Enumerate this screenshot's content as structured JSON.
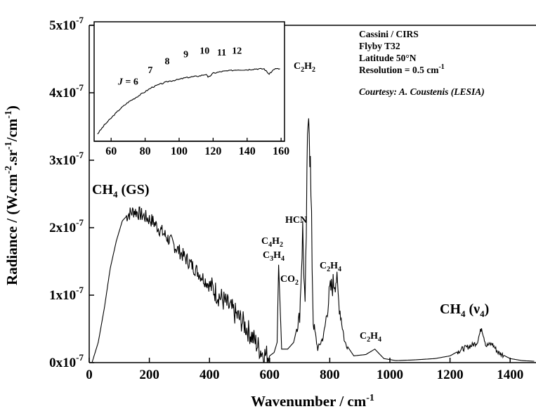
{
  "chart_data": [
    {
      "type": "line",
      "xlabel": "Wavenumber / cm",
      "xlabel_sup": "-1",
      "ylabel": "Radiance / (W.cm",
      "ylabel_parts": [
        "Radiance / (W.cm",
        "-2",
        ".sr",
        "-1",
        "/cm",
        "-1",
        ")"
      ],
      "xlim": [
        0,
        1480
      ],
      "ylim": [
        0,
        5e-07
      ],
      "xticks": [
        0,
        200,
        400,
        600,
        800,
        1000,
        1200,
        1400
      ],
      "xtick_labels": [
        "0",
        "200",
        "400",
        "600",
        "800",
        "1000",
        "1200",
        "1400"
      ],
      "ytick_labels": [
        "0x10",
        "1x10",
        "2x10",
        "3x10",
        "4x10",
        "5x10"
      ],
      "ytick_exp": "-7",
      "yticks": [
        0,
        1e-07,
        2e-07,
        3e-07,
        4e-07,
        5e-07
      ],
      "grid": false,
      "series": [
        {
          "x": [
            10,
            30,
            50,
            70,
            90,
            110,
            130,
            150,
            170,
            190,
            210,
            230,
            250,
            270,
            300,
            330,
            360,
            390,
            420,
            450,
            480,
            510,
            540,
            560,
            580,
            600,
            615,
            625,
            630,
            640,
            660,
            680,
            700,
            710,
            718,
            730,
            745,
            760,
            780,
            800,
            815,
            822,
            830,
            850,
            880,
            920,
            950,
            980,
            1020,
            1080,
            1150,
            1200,
            1240,
            1270,
            1290,
            1305,
            1320,
            1340,
            1360,
            1400,
            1440,
            1480
          ],
          "y": [
            1e-09,
            3e-08,
            8e-08,
            1.4e-07,
            1.8e-07,
            2.1e-07,
            2.2e-07,
            2.25e-07,
            2.2e-07,
            2.15e-07,
            2.1e-07,
            2e-07,
            1.9e-07,
            1.8e-07,
            1.65e-07,
            1.5e-07,
            1.35e-07,
            1.2e-07,
            1.05e-07,
            9e-08,
            7.5e-08,
            6e-08,
            4e-08,
            2.5e-08,
            1.2e-08,
            1e-08,
            1.5e-08,
            3e-08,
            1.45e-07,
            2e-08,
            2e-08,
            3e-08,
            7e-08,
            1.95e-07,
            8e-08,
            4.2e-07,
            6e-08,
            2e-08,
            4e-08,
            1.05e-07,
            1.2e-07,
            1.25e-07,
            9e-08,
            3e-08,
            1e-08,
            1.2e-08,
            2e-08,
            6e-09,
            3e-09,
            4e-09,
            6e-09,
            1e-08,
            2e-08,
            2.5e-08,
            3e-08,
            5.2e-08,
            2.5e-08,
            2.8e-08,
            1.5e-08,
            6e-09,
            3e-09,
            2e-09
          ]
        }
      ],
      "annotations": {
        "info_lines": [
          "Cassini / CIRS",
          "Flyby T32",
          "Latitude 50°N"
        ],
        "resolution": "Resolution = 0.5 cm",
        "resolution_sup": "-1",
        "courtesy": "Courtesy: A. Coustenis (LESIA)",
        "ch4_gs": "CH4 (GS)",
        "ch4_v4": "CH4 (ν4)",
        "c2h2": "C2H2",
        "hcn": "HCN",
        "c4h2": "C4H2",
        "c3h4": "C3H4",
        "co2": "CO2",
        "c2h4_main": "C2H4",
        "c2h4_small": "C2H4"
      }
    },
    {
      "type": "line",
      "xlim": [
        50,
        162
      ],
      "xticks": [
        60,
        80,
        100,
        120,
        140,
        160
      ],
      "xtick_labels": [
        "60",
        "80",
        "100",
        "120",
        "140",
        "160"
      ],
      "series": [
        {
          "x": [
            52,
            56,
            60,
            65,
            70,
            75,
            80,
            84,
            88,
            94,
            100,
            104,
            108,
            112,
            116,
            117,
            120,
            125,
            130,
            134,
            140,
            145,
            150,
            153,
            156,
            160
          ],
          "y": [
            0.02,
            0.12,
            0.2,
            0.3,
            0.38,
            0.44,
            0.5,
            0.55,
            0.58,
            0.62,
            0.64,
            0.66,
            0.67,
            0.68,
            0.7,
            0.66,
            0.71,
            0.73,
            0.74,
            0.75,
            0.75,
            0.76,
            0.76,
            0.7,
            0.76,
            0.76
          ]
        }
      ],
      "j_labels": [
        {
          "text": "J = 6",
          "x": 70
        },
        {
          "text": "7",
          "x": 83
        },
        {
          "text": "8",
          "x": 93
        },
        {
          "text": "9",
          "x": 104
        },
        {
          "text": "10",
          "x": 115
        },
        {
          "text": "11",
          "x": 125
        },
        {
          "text": "12",
          "x": 134
        }
      ]
    }
  ]
}
